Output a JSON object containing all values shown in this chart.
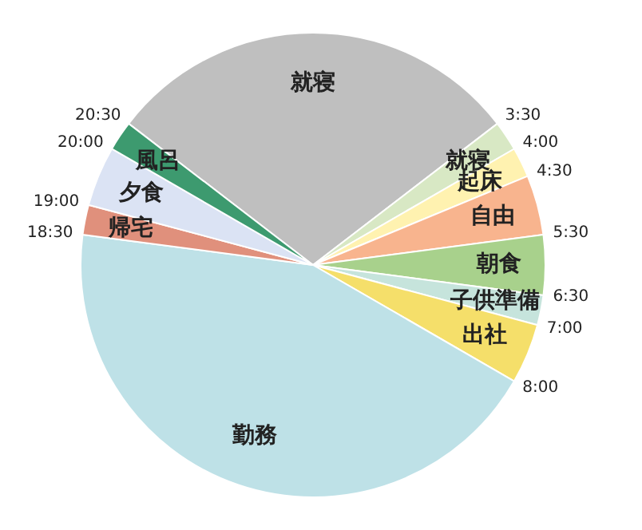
{
  "chart_data": {
    "type": "pie",
    "categories": [
      "就寝",
      "就寝",
      "起床",
      "自由",
      "朝食",
      "子供準備",
      "出社",
      "勤務",
      "帰宅",
      "夕食",
      "風呂"
    ],
    "values": [
      29.17,
      2.08,
      2.08,
      4.17,
      4.17,
      2.08,
      4.17,
      43.75,
      2.08,
      4.17,
      2.08
    ],
    "colors": [
      "#bfbfbf",
      "#d8e8c4",
      "#fff2b0",
      "#f8b48e",
      "#a8d18c",
      "#c6e4dc",
      "#f5df6a",
      "#bee1e7",
      "#e0907c",
      "#dbe3f4",
      "#3d9a6f"
    ],
    "annotations": [
      "20:30",
      "3:30",
      "4:00",
      "4:30",
      "5:30",
      "6:30",
      "7:00",
      "8:00",
      "18:30",
      "19:00",
      "20:00"
    ],
    "legend": false
  }
}
